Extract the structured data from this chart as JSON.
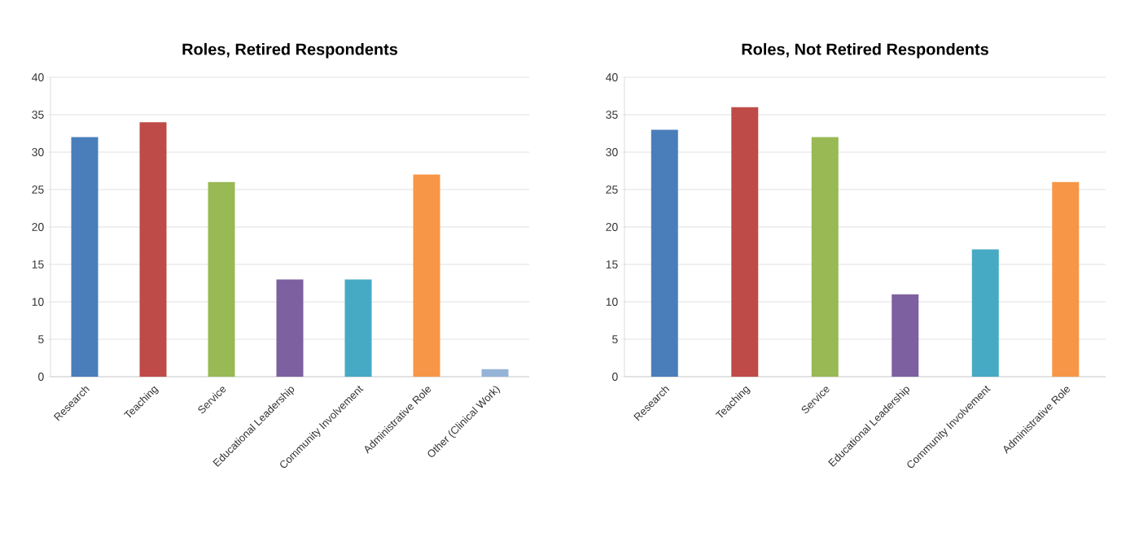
{
  "chart_data": [
    {
      "type": "bar",
      "title": "Roles, Retired Respondents",
      "categories": [
        "Research",
        "Teaching",
        "Service",
        "Educational Leadership",
        "Community Involvement",
        "Administrative Role",
        "Other (Clinical Work)"
      ],
      "values": [
        32,
        34,
        26,
        13,
        13,
        27,
        1
      ],
      "colors": [
        "#4a7ebb",
        "#be4b48",
        "#98b954",
        "#7d60a0",
        "#46aac5",
        "#f79646",
        "#95b3d7"
      ],
      "ylim": [
        0,
        40
      ],
      "yticks": [
        0,
        5,
        10,
        15,
        20,
        25,
        30,
        35,
        40
      ],
      "grid": "y"
    },
    {
      "type": "bar",
      "title": "Roles, Not Retired Respondents",
      "categories": [
        "Research",
        "Teaching",
        "Service",
        "Educational Leadership",
        "Community Involvement",
        "Administrative Role"
      ],
      "values": [
        33,
        36,
        32,
        11,
        17,
        26
      ],
      "colors": [
        "#4a7ebb",
        "#be4b48",
        "#98b954",
        "#7d60a0",
        "#46aac5",
        "#f79646"
      ],
      "ylim": [
        0,
        40
      ],
      "yticks": [
        0,
        5,
        10,
        15,
        20,
        25,
        30,
        35,
        40
      ],
      "grid": "y"
    }
  ]
}
